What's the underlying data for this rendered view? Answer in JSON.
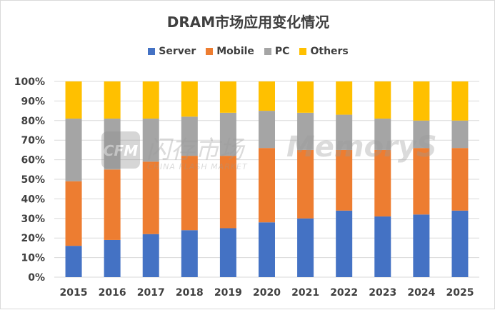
{
  "chart_data": {
    "type": "bar",
    "stacked": true,
    "title": "DRAM市场应用变化情况",
    "categories": [
      "2015",
      "2016",
      "2017",
      "2018",
      "2019",
      "2020",
      "2021",
      "2022",
      "2023",
      "2024",
      "2025"
    ],
    "series": [
      {
        "name": "Server",
        "color": "#4472c4",
        "values": [
          16,
          19,
          22,
          24,
          25,
          28,
          30,
          34,
          31,
          32,
          34
        ]
      },
      {
        "name": "Mobile",
        "color": "#ed7d31",
        "values": [
          33,
          36,
          37,
          38,
          37,
          38,
          35,
          31,
          34,
          34,
          32
        ]
      },
      {
        "name": "PC",
        "color": "#a5a5a5",
        "values": [
          32,
          26,
          22,
          20,
          22,
          19,
          19,
          18,
          16,
          14,
          14
        ]
      },
      {
        "name": "Others",
        "color": "#ffc000",
        "values": [
          19,
          19,
          19,
          18,
          16,
          15,
          16,
          17,
          19,
          20,
          20
        ]
      }
    ],
    "yticks": [
      "0%",
      "10%",
      "20%",
      "30%",
      "40%",
      "50%",
      "60%",
      "70%",
      "80%",
      "90%",
      "100%"
    ],
    "ylim": [
      0,
      100
    ],
    "grid": true,
    "legend_position": "top"
  },
  "watermark": {
    "text_cn": "闪存市场",
    "text_en": "CHINA FLASH MARKET",
    "logo": "CFM",
    "brand": "MemoryS"
  }
}
